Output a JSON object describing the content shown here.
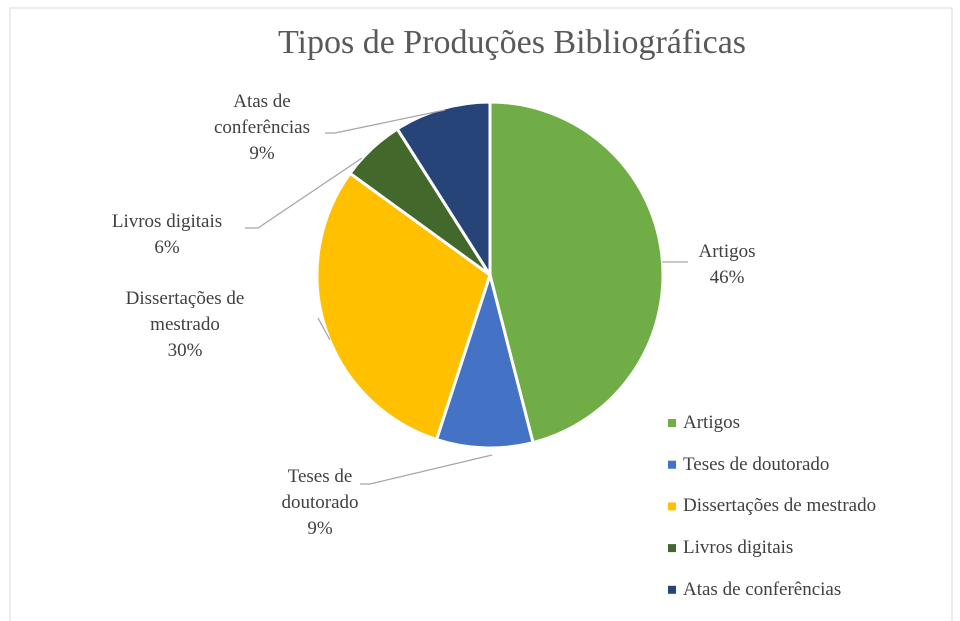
{
  "chart_data": {
    "type": "pie",
    "title": "Tipos de Produções Bibliográficas",
    "categories": [
      "Artigos",
      "Teses de doutorado",
      "Dissertações de mestrado",
      "Livros digitais",
      "Atas de conferências"
    ],
    "values": [
      46,
      9,
      30,
      6,
      9
    ],
    "value_labels": [
      "46%",
      "9%",
      "30%",
      "6%",
      "9%"
    ],
    "colors": [
      "#70ad47",
      "#4472c4",
      "#ffc000",
      "#43682b",
      "#264478"
    ],
    "legend": "right"
  }
}
